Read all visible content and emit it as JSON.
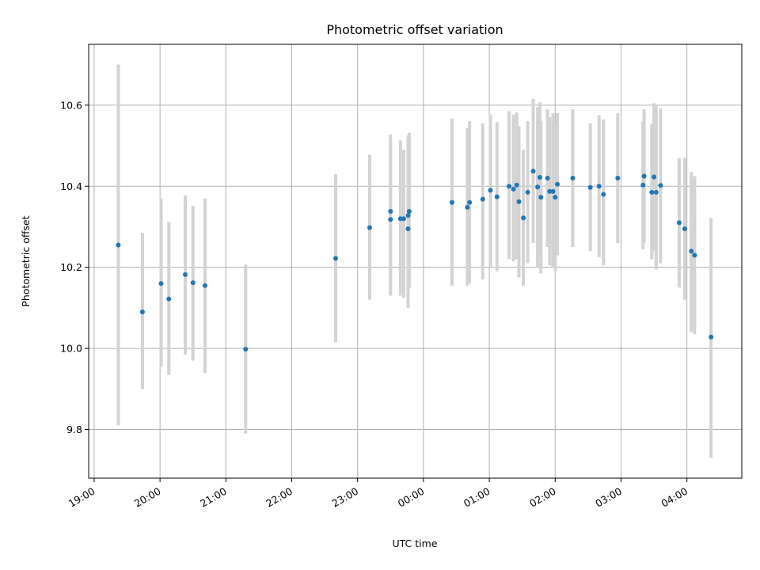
{
  "chart_data": {
    "type": "scatter",
    "title": "Photometric offset variation",
    "xlabel": "UTC time",
    "ylabel": "Photometric offset",
    "x_unit": "UTC clock time (night spans 19:00 to 04:00 next day)",
    "xlim": [
      "18:55",
      "04:50"
    ],
    "ylim": [
      9.68,
      10.75
    ],
    "x_ticks": [
      "19:00",
      "20:00",
      "21:00",
      "22:00",
      "23:00",
      "00:00",
      "01:00",
      "02:00",
      "03:00",
      "04:00"
    ],
    "y_ticks": [
      "9.8",
      "10.0",
      "10.2",
      "10.4",
      "10.6"
    ],
    "grid": true,
    "marker_color": "#1f77b4",
    "errorbar_color": "#d3d3d3",
    "points": [
      {
        "t": "19:22",
        "y": 10.255,
        "lo": 9.81,
        "hi": 10.7
      },
      {
        "t": "19:44",
        "y": 10.09,
        "lo": 9.9,
        "hi": 10.285
      },
      {
        "t": "20:01",
        "y": 10.16,
        "lo": 9.955,
        "hi": 10.37
      },
      {
        "t": "20:08",
        "y": 10.122,
        "lo": 9.935,
        "hi": 10.312
      },
      {
        "t": "20:23",
        "y": 10.182,
        "lo": 9.985,
        "hi": 10.377
      },
      {
        "t": "20:30",
        "y": 10.162,
        "lo": 9.97,
        "hi": 10.352
      },
      {
        "t": "20:41",
        "y": 10.155,
        "lo": 9.94,
        "hi": 10.37
      },
      {
        "t": "21:18",
        "y": 9.998,
        "lo": 9.79,
        "hi": 10.207
      },
      {
        "t": "22:40",
        "y": 10.222,
        "lo": 10.015,
        "hi": 10.43
      },
      {
        "t": "23:11",
        "y": 10.298,
        "lo": 10.12,
        "hi": 10.478
      },
      {
        "t": "23:30",
        "y": 10.338,
        "lo": 10.13,
        "hi": 10.528
      },
      {
        "t": "23:30",
        "y": 10.318,
        "lo": 10.13,
        "hi": 10.51
      },
      {
        "t": "23:39",
        "y": 10.32,
        "lo": 10.13,
        "hi": 10.513
      },
      {
        "t": "23:42",
        "y": 10.32,
        "lo": 10.125,
        "hi": 10.49
      },
      {
        "t": "23:46",
        "y": 10.295,
        "lo": 10.1,
        "hi": 10.52
      },
      {
        "t": "23:46",
        "y": 10.328,
        "lo": 10.14,
        "hi": 10.525
      },
      {
        "t": "23:47",
        "y": 10.338,
        "lo": 10.15,
        "hi": 10.532
      },
      {
        "t": "00:26",
        "y": 10.36,
        "lo": 10.155,
        "hi": 10.567
      },
      {
        "t": "00:40",
        "y": 10.348,
        "lo": 10.155,
        "hi": 10.543
      },
      {
        "t": "00:42",
        "y": 10.36,
        "lo": 10.16,
        "hi": 10.56
      },
      {
        "t": "00:54",
        "y": 10.368,
        "lo": 10.17,
        "hi": 10.555
      },
      {
        "t": "01:01",
        "y": 10.39,
        "lo": 10.2,
        "hi": 10.577
      },
      {
        "t": "01:07",
        "y": 10.374,
        "lo": 10.19,
        "hi": 10.558
      },
      {
        "t": "01:18",
        "y": 10.4,
        "lo": 10.22,
        "hi": 10.585
      },
      {
        "t": "01:22",
        "y": 10.393,
        "lo": 10.215,
        "hi": 10.577
      },
      {
        "t": "01:25",
        "y": 10.403,
        "lo": 10.22,
        "hi": 10.582
      },
      {
        "t": "01:27",
        "y": 10.362,
        "lo": 10.175,
        "hi": 10.549
      },
      {
        "t": "01:31",
        "y": 10.322,
        "lo": 10.155,
        "hi": 10.49
      },
      {
        "t": "01:35",
        "y": 10.385,
        "lo": 10.21,
        "hi": 10.56
      },
      {
        "t": "01:40",
        "y": 10.437,
        "lo": 10.26,
        "hi": 10.615
      },
      {
        "t": "01:44",
        "y": 10.398,
        "lo": 10.2,
        "hi": 10.595
      },
      {
        "t": "01:46",
        "y": 10.422,
        "lo": 10.235,
        "hi": 10.607
      },
      {
        "t": "01:47",
        "y": 10.373,
        "lo": 10.185,
        "hi": 10.56
      },
      {
        "t": "01:53",
        "y": 10.42,
        "lo": 10.25,
        "hi": 10.59
      },
      {
        "t": "01:55",
        "y": 10.387,
        "lo": 10.205,
        "hi": 10.57
      },
      {
        "t": "01:58",
        "y": 10.387,
        "lo": 10.2,
        "hi": 10.58
      },
      {
        "t": "02:00",
        "y": 10.373,
        "lo": 10.19,
        "hi": 10.555
      },
      {
        "t": "02:02",
        "y": 10.405,
        "lo": 10.23,
        "hi": 10.58
      },
      {
        "t": "02:16",
        "y": 10.42,
        "lo": 10.25,
        "hi": 10.59
      },
      {
        "t": "02:32",
        "y": 10.397,
        "lo": 10.24,
        "hi": 10.555
      },
      {
        "t": "02:40",
        "y": 10.4,
        "lo": 10.225,
        "hi": 10.575
      },
      {
        "t": "02:44",
        "y": 10.38,
        "lo": 10.205,
        "hi": 10.565
      },
      {
        "t": "02:57",
        "y": 10.42,
        "lo": 10.26,
        "hi": 10.58
      },
      {
        "t": "03:20",
        "y": 10.403,
        "lo": 10.245,
        "hi": 10.56
      },
      {
        "t": "03:21",
        "y": 10.425,
        "lo": 10.26,
        "hi": 10.59
      },
      {
        "t": "03:28",
        "y": 10.385,
        "lo": 10.22,
        "hi": 10.553
      },
      {
        "t": "03:30",
        "y": 10.423,
        "lo": 10.24,
        "hi": 10.605
      },
      {
        "t": "03:32",
        "y": 10.385,
        "lo": 10.195,
        "hi": 10.6
      },
      {
        "t": "03:36",
        "y": 10.402,
        "lo": 10.21,
        "hi": 10.592
      },
      {
        "t": "03:53",
        "y": 10.31,
        "lo": 10.15,
        "hi": 10.47
      },
      {
        "t": "03:58",
        "y": 10.295,
        "lo": 10.12,
        "hi": 10.47
      },
      {
        "t": "04:04",
        "y": 10.24,
        "lo": 10.04,
        "hi": 10.435
      },
      {
        "t": "04:07",
        "y": 10.23,
        "lo": 10.035,
        "hi": 10.425
      },
      {
        "t": "04:22",
        "y": 10.028,
        "lo": 9.73,
        "hi": 10.322
      }
    ]
  }
}
